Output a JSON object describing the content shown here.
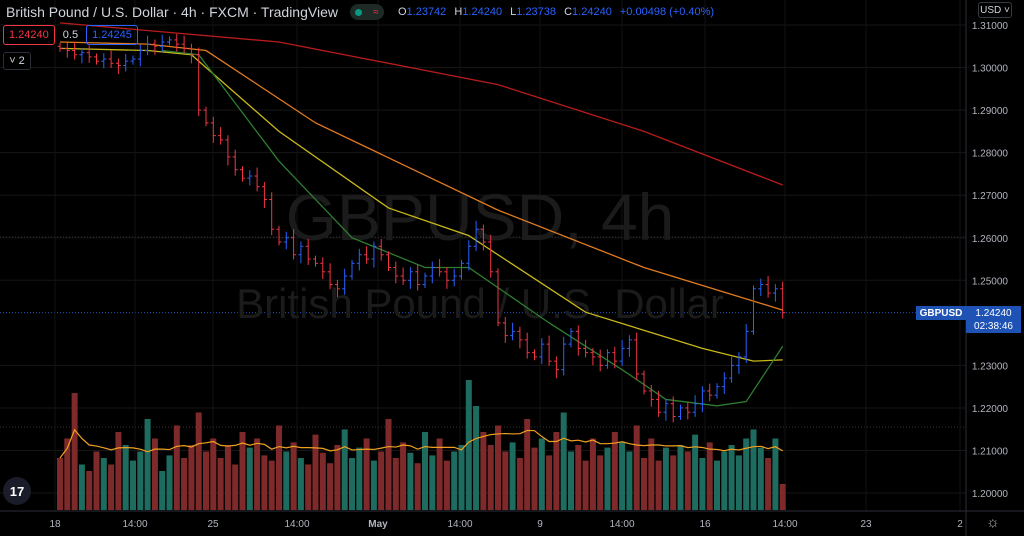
{
  "header": {
    "title": "British Pound / U.S. Dollar · 4h · FXCM · TradingView",
    "ohlc": {
      "o_label": "O",
      "o": "1.23742",
      "h_label": "H",
      "h": "1.24240",
      "l_label": "L",
      "l": "1.23738",
      "c_label": "C",
      "c": "1.24240",
      "change": "+0.00498 (+0.40%)"
    },
    "status_icon": "market-open-dot",
    "wave_icon": "≈"
  },
  "trade": {
    "sell": "1.24240",
    "spread": "0.5",
    "buy": "1.24245"
  },
  "indicators_toggle": "˅ 2",
  "currency": "USD ˅",
  "watermark": {
    "symbol": "GBPUSD, 4h",
    "name": "British Pound / U.S. Dollar"
  },
  "last": {
    "symbol": "GBPUSD",
    "price": "1.24240",
    "countdown": "02:38:46"
  },
  "colors": {
    "up": "#2962ff",
    "down": "#f23645",
    "vol_up": "#1e6b5f",
    "vol_down": "#7f2a2a",
    "ma200": "#b71c1c",
    "ma100": "#e07b20",
    "ma50": "#c8b81a",
    "ma20": "#2e7d32",
    "vol_ma": "#f0a020"
  },
  "price_axis": [
    "1.31000",
    "1.30000",
    "1.29000",
    "1.28000",
    "1.27000",
    "1.26000",
    "1.25000",
    "1.23000",
    "1.22000",
    "1.21000",
    "1.20000"
  ],
  "time_axis": [
    "18",
    "14:00",
    "25",
    "14:00",
    "May",
    "14:00",
    "9",
    "14:00",
    "16",
    "14:00",
    "23",
    "2"
  ],
  "chart_data": {
    "type": "candlestick",
    "ylim": [
      1.195,
      1.312
    ],
    "closes": [
      1.3045,
      1.304,
      1.303,
      1.3035,
      1.3025,
      1.3015,
      1.302,
      1.301,
      1.3005,
      1.3015,
      1.302,
      1.304,
      1.3055,
      1.305,
      1.306,
      1.3065,
      1.3055,
      1.3045,
      1.303,
      1.29,
      1.287,
      1.284,
      1.283,
      1.279,
      1.276,
      1.274,
      1.2745,
      1.272,
      1.269,
      1.262,
      1.259,
      1.26,
      1.256,
      1.258,
      1.255,
      1.254,
      1.252,
      1.249,
      1.248,
      1.251,
      1.254,
      1.256,
      1.255,
      1.258,
      1.256,
      1.253,
      1.251,
      1.25,
      1.252,
      1.249,
      1.251,
      1.253,
      1.252,
      1.25,
      1.251,
      1.254,
      1.258,
      1.262,
      1.259,
      1.252,
      1.24,
      1.237,
      1.238,
      1.236,
      1.233,
      1.232,
      1.235,
      1.231,
      1.229,
      1.235,
      1.238,
      1.234,
      1.233,
      1.232,
      1.23,
      1.233,
      1.231,
      1.234,
      1.236,
      1.228,
      1.224,
      1.222,
      1.219,
      1.221,
      1.218,
      1.22,
      1.219,
      1.221,
      1.224,
      1.223,
      1.225,
      1.227,
      1.23,
      1.232,
      1.238,
      1.248,
      1.249,
      1.247,
      1.248,
      1.2424
    ],
    "volume": [
      40,
      55,
      90,
      35,
      30,
      45,
      40,
      35,
      60,
      50,
      38,
      45,
      70,
      55,
      30,
      42,
      65,
      40,
      50,
      75,
      45,
      55,
      40,
      50,
      35,
      60,
      48,
      55,
      42,
      38,
      65,
      45,
      52,
      40,
      35,
      58,
      44,
      36,
      50,
      62,
      40,
      48,
      55,
      38,
      45,
      70,
      40,
      52,
      44,
      36,
      60,
      42,
      55,
      38,
      45,
      50,
      100,
      80,
      60,
      50,
      65,
      45,
      52,
      40,
      70,
      48,
      55,
      42,
      60,
      75,
      45,
      50,
      38,
      55,
      42,
      48,
      60,
      52,
      45,
      65,
      40,
      55,
      38,
      48,
      42,
      50,
      45,
      58,
      40,
      52,
      38,
      45,
      50,
      42,
      55,
      62,
      48,
      40,
      55,
      20
    ],
    "ma": [
      {
        "key": "ma200",
        "points": [
          [
            0,
            1.3105
          ],
          [
            30,
            1.306
          ],
          [
            60,
            1.296
          ],
          [
            80,
            1.285
          ],
          [
            99,
            1.2724
          ]
        ]
      },
      {
        "key": "ma100",
        "points": [
          [
            0,
            1.306
          ],
          [
            12,
            1.3055
          ],
          [
            20,
            1.304
          ],
          [
            35,
            1.287
          ],
          [
            60,
            1.2665
          ],
          [
            80,
            1.253
          ],
          [
            99,
            1.243
          ]
        ]
      },
      {
        "key": "ma50",
        "points": [
          [
            0,
            1.3045
          ],
          [
            12,
            1.304
          ],
          [
            18,
            1.303
          ],
          [
            30,
            1.285
          ],
          [
            45,
            1.267
          ],
          [
            56,
            1.2605
          ],
          [
            72,
            1.2425
          ],
          [
            88,
            1.234
          ],
          [
            95,
            1.231
          ],
          [
            99,
            1.2313
          ]
        ]
      },
      {
        "key": "ma20",
        "points": [
          [
            14,
            1.304
          ],
          [
            19,
            1.303
          ],
          [
            30,
            1.278
          ],
          [
            40,
            1.26
          ],
          [
            50,
            1.253
          ],
          [
            56,
            1.253
          ],
          [
            67,
            1.24
          ],
          [
            77,
            1.229
          ],
          [
            83,
            1.222
          ],
          [
            90,
            1.2205
          ],
          [
            94,
            1.2215
          ],
          [
            99,
            1.2345
          ]
        ]
      }
    ]
  }
}
